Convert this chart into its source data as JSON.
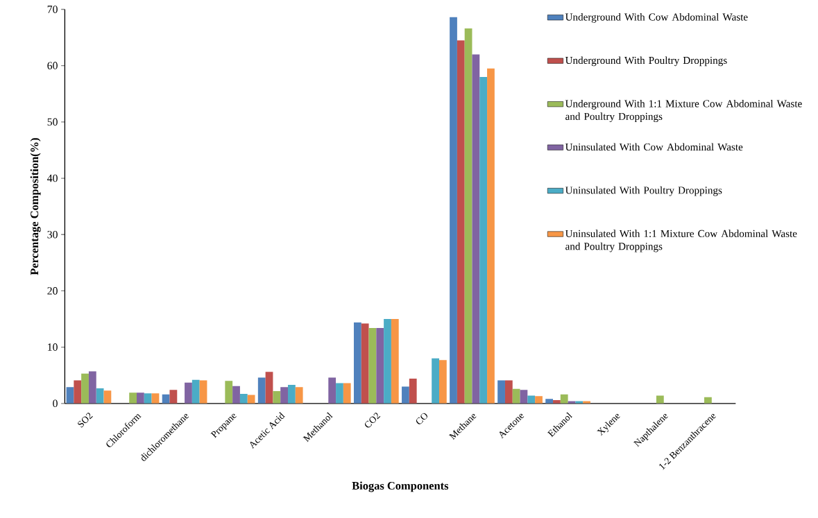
{
  "chart_data": {
    "type": "bar",
    "xlabel": "Biogas Components",
    "ylabel": "Percentage Composition(%)",
    "categories": [
      "SO2",
      "Chloroform",
      "dichloromethane",
      "Propane",
      "Acetic Acid",
      "Methanol",
      "CO2",
      "CO",
      "Methane",
      "Acetone",
      "Ethanol",
      "Xylene",
      "Napthalene",
      "1-2 Benzanthracene"
    ],
    "series": [
      {
        "name": "Underground With Cow Abdominal Waste",
        "color": "#4f81bd",
        "values": [
          2.9,
          0,
          1.6,
          0,
          4.6,
          0,
          14.4,
          3.0,
          68.6,
          4.1,
          0.8,
          0,
          0,
          0
        ]
      },
      {
        "name": "Underground With Poultry Droppings",
        "color": "#c0504d",
        "values": [
          4.1,
          0,
          2.4,
          0,
          5.6,
          0,
          14.2,
          4.4,
          64.5,
          4.1,
          0.6,
          0,
          0,
          0
        ]
      },
      {
        "name": "Underground With 1:1 Mixture Cow Abdominal Waste and Poultry Droppings",
        "color": "#9bbb59",
        "values": [
          5.3,
          1.9,
          0,
          4.0,
          2.2,
          0,
          13.4,
          0,
          66.6,
          2.6,
          1.6,
          0,
          1.4,
          1.1
        ]
      },
      {
        "name": "Uninsulated With Cow Abdominal Waste",
        "color": "#8064a2",
        "values": [
          5.7,
          1.9,
          3.7,
          3.1,
          2.9,
          4.6,
          13.4,
          0,
          62.0,
          2.4,
          0.4,
          0,
          0,
          0
        ]
      },
      {
        "name": "Uninsulated With Poultry Droppings",
        "color": "#4bacc6",
        "values": [
          2.7,
          1.8,
          4.2,
          1.7,
          3.3,
          3.6,
          15.0,
          8.0,
          58.0,
          1.4,
          0.4,
          0,
          0,
          0
        ]
      },
      {
        "name": "Uninsulated With 1:1 Mixture Cow Abdominal Waste and Poultry Droppings",
        "color": "#f79646",
        "values": [
          2.3,
          1.8,
          4.1,
          1.5,
          2.9,
          3.6,
          15.0,
          7.7,
          59.5,
          1.3,
          0.4,
          0,
          0,
          0
        ]
      }
    ],
    "ylim": [
      0,
      70
    ],
    "yticks": [
      0,
      10,
      20,
      30,
      40,
      50,
      60,
      70
    ],
    "legend": "top right"
  }
}
